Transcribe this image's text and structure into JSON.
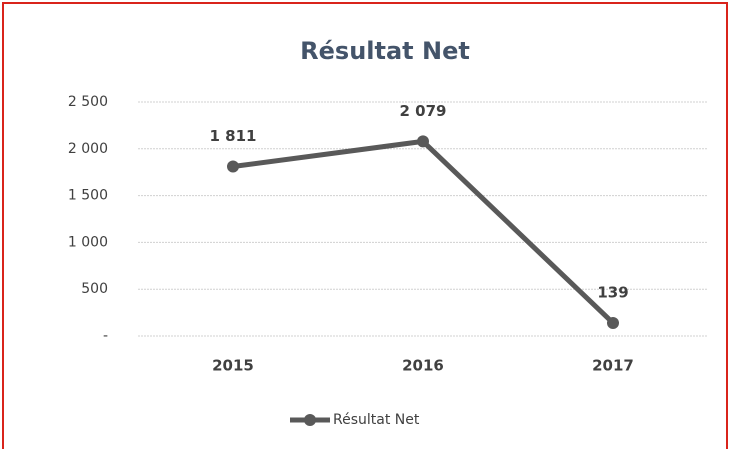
{
  "chart_data": {
    "type": "line",
    "title": "Résultat Net",
    "categories": [
      "2015",
      "2016",
      "2017"
    ],
    "series": [
      {
        "name": "Résultat Net",
        "color": "#595959",
        "values": [
          1811,
          2079,
          139
        ],
        "value_labels": [
          "1 811",
          "2 079",
          "139"
        ]
      }
    ],
    "ylim": [
      0,
      2500
    ],
    "yticks": [
      {
        "value": 0,
        "label": "-"
      },
      500,
      {
        "value": 1000,
        "label": "1 000"
      },
      {
        "value": 1500,
        "label": "1 500"
      },
      {
        "value": 2000,
        "label": "2 000"
      },
      {
        "value": 2500,
        "label": "2 500"
      }
    ],
    "grid": true,
    "legend": "bottom"
  }
}
